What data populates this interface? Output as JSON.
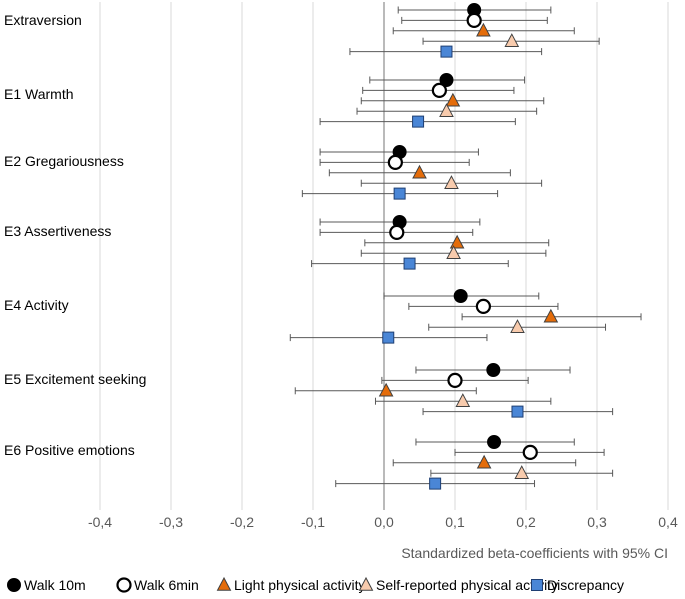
{
  "chart_data": {
    "type": "forest-plot",
    "xlabel": "Standardized beta-coefficients with 95% CI",
    "xlim": [
      -0.4,
      0.4
    ],
    "xticks": [
      -0.4,
      -0.3,
      -0.2,
      -0.1,
      0.0,
      0.1,
      0.2,
      0.3,
      0.4
    ],
    "xtick_labels": [
      "-0,4",
      "-0,3",
      "-0,2",
      "-0,1",
      "0,0",
      "0,1",
      "0,2",
      "0,3",
      "0,4"
    ],
    "grid": true,
    "legend_position": "bottom",
    "categories": [
      "Extraversion",
      "E1 Warmth",
      "E2 Gregariousness",
      "E3 Assertiveness",
      "E4 Activity",
      "E5 Excitement seeking",
      "E6 Positive emotions"
    ],
    "series": [
      {
        "name": "Walk 10m",
        "marker": "circle-filled",
        "color": "#000000",
        "estimates": [
          0.127,
          0.088,
          0.022,
          0.022,
          0.108,
          0.154,
          0.155
        ],
        "ci_low": [
          0.02,
          -0.02,
          -0.09,
          -0.09,
          0.0,
          0.045,
          0.045
        ],
        "ci_high": [
          0.235,
          0.198,
          0.133,
          0.135,
          0.218,
          0.262,
          0.268
        ]
      },
      {
        "name": "Walk 6min",
        "marker": "circle-open",
        "color": "#000000",
        "estimates": [
          0.127,
          0.078,
          0.016,
          0.018,
          0.14,
          0.1,
          0.206
        ],
        "ci_low": [
          0.025,
          -0.03,
          -0.09,
          -0.09,
          0.035,
          -0.003,
          0.1
        ],
        "ci_high": [
          0.23,
          0.183,
          0.12,
          0.125,
          0.245,
          0.203,
          0.31
        ]
      },
      {
        "name": "Light physical activity",
        "marker": "triangle",
        "color": "#E46C0A",
        "estimates": [
          0.14,
          0.097,
          0.05,
          0.103,
          0.235,
          0.003,
          0.141
        ],
        "ci_low": [
          0.013,
          -0.032,
          -0.077,
          -0.027,
          0.11,
          -0.125,
          0.013
        ],
        "ci_high": [
          0.268,
          0.225,
          0.178,
          0.232,
          0.362,
          0.13,
          0.27
        ]
      },
      {
        "name": "Self-reported physical activity",
        "marker": "triangle",
        "color": "#F8CBAD",
        "estimates": [
          0.18,
          0.088,
          0.095,
          0.098,
          0.188,
          0.111,
          0.194
        ],
        "ci_low": [
          0.055,
          -0.038,
          -0.032,
          -0.032,
          0.063,
          -0.012,
          0.066
        ],
        "ci_high": [
          0.303,
          0.215,
          0.222,
          0.228,
          0.312,
          0.235,
          0.322
        ]
      },
      {
        "name": "Discrepancy",
        "marker": "square",
        "color": "#4A86D6",
        "estimates": [
          0.088,
          0.048,
          0.022,
          0.036,
          0.006,
          0.188,
          0.072
        ],
        "ci_low": [
          -0.048,
          -0.09,
          -0.115,
          -0.102,
          -0.132,
          0.055,
          -0.068
        ],
        "ci_high": [
          0.222,
          0.185,
          0.16,
          0.175,
          0.145,
          0.322,
          0.212
        ]
      }
    ]
  }
}
